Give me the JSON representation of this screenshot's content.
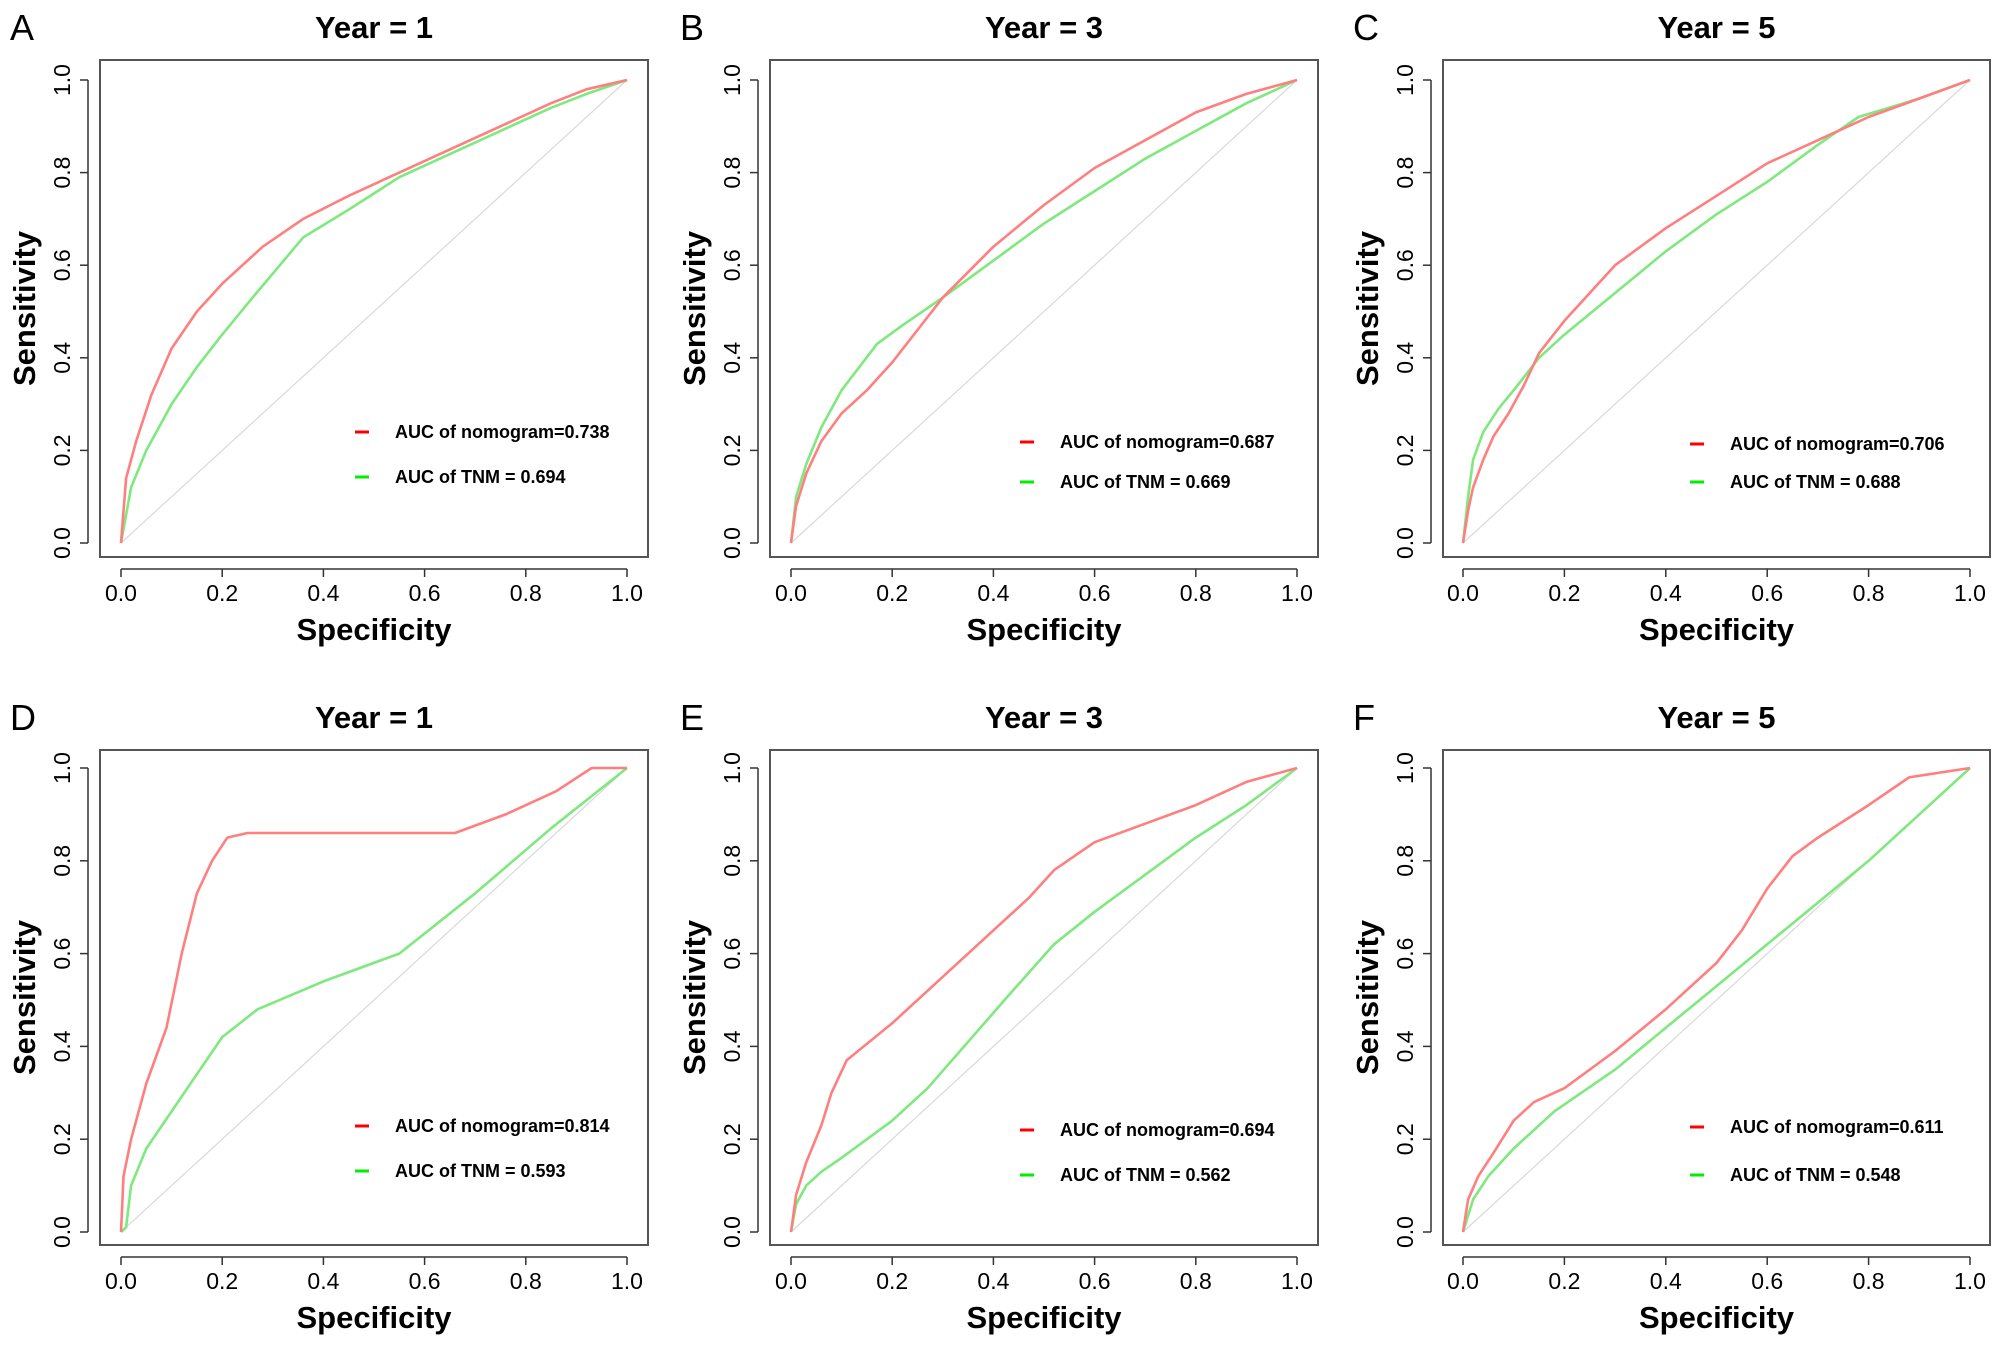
{
  "chart_data": [
    {
      "type": "line",
      "panel_label": "A",
      "title": "Year = 1",
      "xlabel": "Specificity",
      "ylabel": "Sensitivity",
      "xlim": [
        0,
        1
      ],
      "ylim": [
        0,
        1
      ],
      "xticks": [
        "0.0",
        "0.2",
        "0.4",
        "0.6",
        "0.8",
        "1.0"
      ],
      "yticks": [
        "0.0",
        "0.2",
        "0.4",
        "0.6",
        "0.8",
        "1.0"
      ],
      "reference_line": "diagonal",
      "legend_position": "bottom-right",
      "series": [
        {
          "name": "AUC of nomogram=0.738",
          "color": "#ff7f7f",
          "legend_color": "#ff0000",
          "x": [
            0,
            0.01,
            0.03,
            0.06,
            0.1,
            0.15,
            0.2,
            0.28,
            0.36,
            0.45,
            0.55,
            0.65,
            0.75,
            0.85,
            0.92,
            1
          ],
          "y": [
            0,
            0.14,
            0.22,
            0.32,
            0.42,
            0.5,
            0.56,
            0.64,
            0.7,
            0.75,
            0.8,
            0.85,
            0.9,
            0.95,
            0.98,
            1
          ]
        },
        {
          "name": "AUC of TNM = 0.694",
          "color": "#7fe87f",
          "legend_color": "#00ee00",
          "x": [
            0,
            0.02,
            0.05,
            0.1,
            0.15,
            0.2,
            0.26,
            0.36,
            0.45,
            0.55,
            0.65,
            0.75,
            0.85,
            0.92,
            1
          ],
          "y": [
            0,
            0.12,
            0.2,
            0.3,
            0.38,
            0.45,
            0.53,
            0.66,
            0.72,
            0.79,
            0.84,
            0.89,
            0.94,
            0.97,
            1
          ]
        }
      ]
    },
    {
      "type": "line",
      "panel_label": "B",
      "title": "Year = 3",
      "xlabel": "Specificity",
      "ylabel": "Sensitivity",
      "xlim": [
        0,
        1
      ],
      "ylim": [
        0,
        1
      ],
      "xticks": [
        "0.0",
        "0.2",
        "0.4",
        "0.6",
        "0.8",
        "1.0"
      ],
      "yticks": [
        "0.0",
        "0.2",
        "0.4",
        "0.6",
        "0.8",
        "1.0"
      ],
      "reference_line": "diagonal",
      "legend_position": "bottom-right",
      "series": [
        {
          "name": "AUC of nomogram=0.687",
          "color": "#ff7f7f",
          "legend_color": "#ff0000",
          "x": [
            0,
            0.01,
            0.03,
            0.06,
            0.1,
            0.15,
            0.2,
            0.25,
            0.3,
            0.4,
            0.5,
            0.6,
            0.7,
            0.8,
            0.9,
            1
          ],
          "y": [
            0,
            0.08,
            0.15,
            0.22,
            0.28,
            0.33,
            0.39,
            0.46,
            0.53,
            0.64,
            0.73,
            0.81,
            0.87,
            0.93,
            0.97,
            1
          ]
        },
        {
          "name": "AUC of TNM = 0.669",
          "color": "#7fe87f",
          "legend_color": "#00ee00",
          "x": [
            0,
            0.01,
            0.03,
            0.06,
            0.1,
            0.17,
            0.22,
            0.3,
            0.4,
            0.5,
            0.6,
            0.7,
            0.8,
            0.9,
            1
          ],
          "y": [
            0,
            0.1,
            0.17,
            0.25,
            0.33,
            0.43,
            0.47,
            0.53,
            0.61,
            0.69,
            0.76,
            0.83,
            0.89,
            0.95,
            1
          ]
        }
      ]
    },
    {
      "type": "line",
      "panel_label": "C",
      "title": "Year = 5",
      "xlabel": "Specificity",
      "ylabel": "Sensitivity",
      "xlim": [
        0,
        1
      ],
      "ylim": [
        0,
        1
      ],
      "xticks": [
        "0.0",
        "0.2",
        "0.4",
        "0.6",
        "0.8",
        "1.0"
      ],
      "yticks": [
        "0.0",
        "0.2",
        "0.4",
        "0.6",
        "0.8",
        "1.0"
      ],
      "reference_line": "diagonal",
      "legend_position": "bottom-right",
      "series": [
        {
          "name": "AUC of nomogram=0.706",
          "color": "#ff7f7f",
          "legend_color": "#ff0000",
          "x": [
            0,
            0.01,
            0.02,
            0.04,
            0.06,
            0.09,
            0.12,
            0.15,
            0.2,
            0.3,
            0.4,
            0.5,
            0.6,
            0.7,
            0.8,
            0.9,
            1
          ],
          "y": [
            0,
            0.07,
            0.12,
            0.18,
            0.23,
            0.28,
            0.34,
            0.41,
            0.48,
            0.6,
            0.68,
            0.75,
            0.82,
            0.87,
            0.92,
            0.96,
            1
          ]
        },
        {
          "name": "AUC of TNM = 0.688",
          "color": "#7fe87f",
          "legend_color": "#00ee00",
          "x": [
            0,
            0.01,
            0.02,
            0.04,
            0.07,
            0.1,
            0.15,
            0.2,
            0.3,
            0.4,
            0.5,
            0.6,
            0.7,
            0.78,
            0.9,
            1
          ],
          "y": [
            0,
            0.1,
            0.18,
            0.24,
            0.29,
            0.33,
            0.4,
            0.45,
            0.54,
            0.63,
            0.71,
            0.78,
            0.86,
            0.92,
            0.96,
            1
          ]
        }
      ]
    },
    {
      "type": "line",
      "panel_label": "D",
      "title": "Year = 1",
      "xlabel": "Specificity",
      "ylabel": "Sensitivity",
      "xlim": [
        0,
        1
      ],
      "ylim": [
        0,
        1
      ],
      "xticks": [
        "0.0",
        "0.2",
        "0.4",
        "0.6",
        "0.8",
        "1.0"
      ],
      "yticks": [
        "0.0",
        "0.2",
        "0.4",
        "0.6",
        "0.8",
        "1.0"
      ],
      "reference_line": "diagonal",
      "legend_position": "bottom-right",
      "series": [
        {
          "name": "AUC of nomogram=0.814",
          "color": "#ff7f7f",
          "legend_color": "#ff0000",
          "x": [
            0,
            0.005,
            0.02,
            0.05,
            0.09,
            0.12,
            0.15,
            0.18,
            0.21,
            0.25,
            0.4,
            0.55,
            0.66,
            0.76,
            0.86,
            0.93,
            1
          ],
          "y": [
            0,
            0.12,
            0.2,
            0.32,
            0.44,
            0.6,
            0.73,
            0.8,
            0.85,
            0.86,
            0.86,
            0.86,
            0.86,
            0.9,
            0.95,
            1,
            1
          ]
        },
        {
          "name": "AUC of TNM = 0.593",
          "color": "#7fe87f",
          "legend_color": "#00ee00",
          "x": [
            0,
            0.01,
            0.02,
            0.05,
            0.1,
            0.15,
            0.2,
            0.27,
            0.4,
            0.55,
            0.7,
            0.85,
            1
          ],
          "y": [
            0,
            0.01,
            0.1,
            0.18,
            0.26,
            0.34,
            0.42,
            0.48,
            0.54,
            0.6,
            0.73,
            0.87,
            1
          ]
        }
      ]
    },
    {
      "type": "line",
      "panel_label": "E",
      "title": "Year = 3",
      "xlabel": "Specificity",
      "ylabel": "Sensitivity",
      "xlim": [
        0,
        1
      ],
      "ylim": [
        0,
        1
      ],
      "xticks": [
        "0.0",
        "0.2",
        "0.4",
        "0.6",
        "0.8",
        "1.0"
      ],
      "yticks": [
        "0.0",
        "0.2",
        "0.4",
        "0.6",
        "0.8",
        "1.0"
      ],
      "reference_line": "diagonal",
      "legend_position": "bottom-right",
      "series": [
        {
          "name": "AUC of nomogram=0.694",
          "color": "#ff7f7f",
          "legend_color": "#ff0000",
          "x": [
            0,
            0.01,
            0.03,
            0.06,
            0.08,
            0.11,
            0.2,
            0.28,
            0.35,
            0.42,
            0.47,
            0.52,
            0.6,
            0.7,
            0.8,
            0.9,
            1
          ],
          "y": [
            0,
            0.08,
            0.15,
            0.23,
            0.3,
            0.37,
            0.45,
            0.53,
            0.6,
            0.67,
            0.72,
            0.78,
            0.84,
            0.88,
            0.92,
            0.97,
            1
          ]
        },
        {
          "name": "AUC of TNM = 0.562",
          "color": "#7fe87f",
          "legend_color": "#00ee00",
          "x": [
            0,
            0.01,
            0.03,
            0.06,
            0.1,
            0.2,
            0.27,
            0.35,
            0.43,
            0.52,
            0.6,
            0.7,
            0.8,
            0.9,
            1
          ],
          "y": [
            0,
            0.06,
            0.1,
            0.13,
            0.16,
            0.24,
            0.31,
            0.41,
            0.51,
            0.62,
            0.69,
            0.77,
            0.85,
            0.92,
            1
          ]
        }
      ]
    },
    {
      "type": "line",
      "panel_label": "F",
      "title": "Year = 5",
      "xlabel": "Specificity",
      "ylabel": "Sensitivity",
      "xlim": [
        0,
        1
      ],
      "ylim": [
        0,
        1
      ],
      "xticks": [
        "0.0",
        "0.2",
        "0.4",
        "0.6",
        "0.8",
        "1.0"
      ],
      "yticks": [
        "0.0",
        "0.2",
        "0.4",
        "0.6",
        "0.8",
        "1.0"
      ],
      "reference_line": "diagonal",
      "legend_position": "bottom-right",
      "series": [
        {
          "name": "AUC of nomogram=0.611",
          "color": "#ff7f7f",
          "legend_color": "#ff0000",
          "x": [
            0,
            0.01,
            0.03,
            0.06,
            0.1,
            0.14,
            0.2,
            0.3,
            0.4,
            0.45,
            0.5,
            0.55,
            0.6,
            0.65,
            0.7,
            0.8,
            0.88,
            1
          ],
          "y": [
            0,
            0.07,
            0.12,
            0.17,
            0.24,
            0.28,
            0.31,
            0.39,
            0.48,
            0.53,
            0.58,
            0.65,
            0.74,
            0.81,
            0.85,
            0.92,
            0.98,
            1
          ]
        },
        {
          "name": "AUC of TNM = 0.548",
          "color": "#7fe87f",
          "legend_color": "#00ee00",
          "x": [
            0,
            0.02,
            0.05,
            0.1,
            0.18,
            0.3,
            0.4,
            0.5,
            0.6,
            0.7,
            0.8,
            0.9,
            1
          ],
          "y": [
            0,
            0.07,
            0.12,
            0.18,
            0.26,
            0.35,
            0.44,
            0.53,
            0.62,
            0.71,
            0.8,
            0.9,
            1
          ]
        }
      ]
    }
  ]
}
